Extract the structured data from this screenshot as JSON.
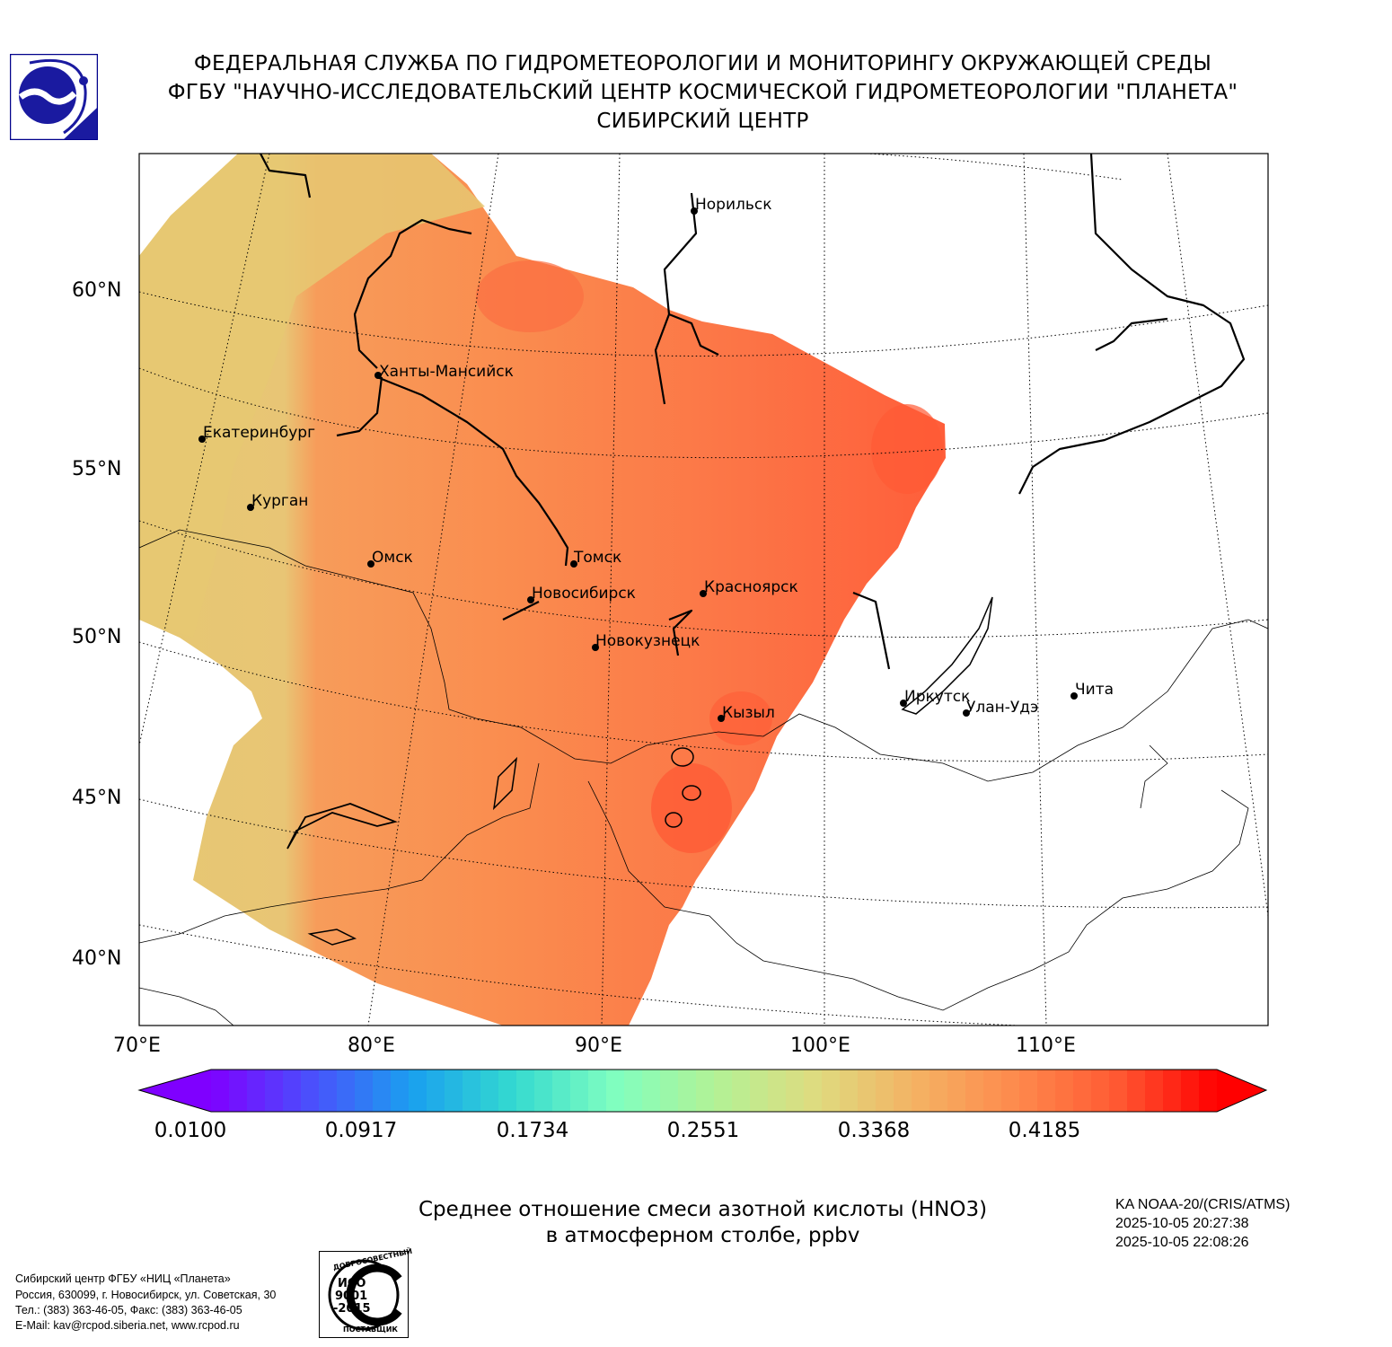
{
  "header": {
    "line1": "ФЕДЕРАЛЬНАЯ СЛУЖБА ПО ГИДРОМЕТЕОРОЛОГИИ И МОНИТОРИНГУ ОКРУЖАЮЩЕЙ СРЕДЫ",
    "line2": "ФГБУ \"НАУЧНО-ИССЛЕДОВАТЕЛЬСКИЙ ЦЕНТР КОСМИЧЕСКОЙ ГИДРОМЕТЕОРОЛОГИИ \"ПЛАНЕТА\"",
    "line3": "СИБИРСКИЙ ЦЕНТР"
  },
  "map": {
    "lat_labels": [
      "60°N",
      "55°N",
      "50°N",
      "45°N",
      "40°N"
    ],
    "lon_labels": [
      "70°E",
      "80°E",
      "90°E",
      "100°E",
      "110°E"
    ],
    "cities": [
      {
        "name": "Норильск"
      },
      {
        "name": "Ханты-Мансийск"
      },
      {
        "name": "Екатеринбург"
      },
      {
        "name": "Курган"
      },
      {
        "name": "Омск"
      },
      {
        "name": "Томск"
      },
      {
        "name": "Новосибирск"
      },
      {
        "name": "Красноярск"
      },
      {
        "name": "Новокузнецк"
      },
      {
        "name": "Кызыл"
      },
      {
        "name": "Иркутск"
      },
      {
        "name": "Улан-Удэ"
      },
      {
        "name": "Чита"
      }
    ]
  },
  "colorbar": {
    "labels": [
      "0.0100",
      "0.0917",
      "0.1734",
      "0.2551",
      "0.3368",
      "0.4185"
    ],
    "colors": [
      "#7f00ff",
      "#4a50fc",
      "#1aa0ef",
      "#33d9d0",
      "#7ffec0",
      "#b2f296",
      "#dedc80",
      "#f4b263",
      "#fe8a4d",
      "#ff5a33",
      "#ff0000"
    ]
  },
  "caption": {
    "line1": "Среднее отношение смеси азотной кислоты (HNO3)",
    "line2": "в атмосферном столбе, ppbv"
  },
  "satellite": {
    "name": "KA NOAA-20/(CRIS/ATMS)",
    "time_start": "2025-10-05 20:27:38",
    "time_end": "2025-10-05 22:08:26"
  },
  "footer": {
    "line1": "Сибирский центр ФГБУ «НИЦ «Планета»",
    "line2": "Россия, 630099, г. Новосибирск, ул. Советская, 30",
    "line3": "Тел.: (383) 363-46-05, Факс: (383) 363-46-05",
    "line4": "E-Mail: kav@rcpod.siberia.net, www.rcpod.ru"
  },
  "badge": {
    "top_text": "ДОБРОСОВЕСТНЫЙ",
    "iso_line1": "ИСО",
    "iso_line2": "9001",
    "iso_line3": "-2015",
    "bottom_text": "ПОСТАВЩИК"
  }
}
